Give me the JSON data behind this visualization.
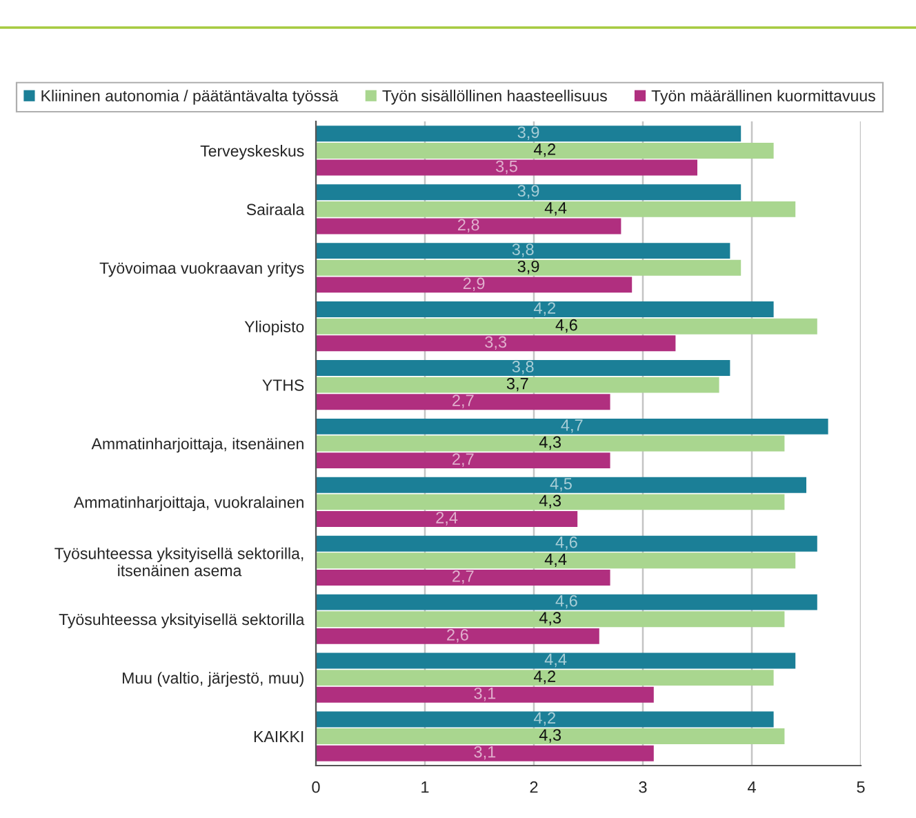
{
  "chart_data": {
    "type": "bar",
    "orientation": "horizontal",
    "categories": [
      "Terveyskeskus",
      "Sairaala",
      "Työvoimaa vuokraavan yritys",
      "Yliopisto",
      "YTHS",
      "Ammatinharjoittaja, itsenäinen",
      "Ammatinharjoittaja, vuokralainen",
      "Työsuhteessa yksityisellä sektorilla,\nitsenäinen asema",
      "Työsuhteessa yksityisellä sektorilla",
      "Muu (valtio, järjestö, muu)",
      "KAIKKI"
    ],
    "series": [
      {
        "name": "Kliininen autonomia / päätäntävalta työssä",
        "color": "#1b7f97",
        "values": [
          3.9,
          3.9,
          3.8,
          4.2,
          3.8,
          4.7,
          4.5,
          4.6,
          4.6,
          4.4,
          4.2
        ],
        "value_labels": [
          "3,9",
          "3,9",
          "3,8",
          "4,2",
          "3,8",
          "4,7",
          "4,5",
          "4,6",
          "4,6",
          "4,4",
          "4,2"
        ]
      },
      {
        "name": "Työn sisällöllinen haasteellisuus",
        "color": "#a9d68f",
        "values": [
          4.2,
          4.4,
          3.9,
          4.6,
          3.7,
          4.3,
          4.3,
          4.4,
          4.3,
          4.2,
          4.3
        ],
        "value_labels": [
          "4,2",
          "4,4",
          "3,9",
          "4,6",
          "3,7",
          "4,3",
          "4,3",
          "4,4",
          "4,3",
          "4,2",
          "4,3"
        ]
      },
      {
        "name": "Työn määrällinen kuormittavuus",
        "color": "#b02f7f",
        "values": [
          3.5,
          2.8,
          2.9,
          3.3,
          2.7,
          2.7,
          2.4,
          2.7,
          2.6,
          3.1,
          3.1
        ],
        "value_labels": [
          "3,5",
          "2,8",
          "2,9",
          "3,3",
          "2,7",
          "2,7",
          "2,4",
          "2,7",
          "2,6",
          "3,1",
          "3,1"
        ]
      }
    ],
    "xlim": [
      0,
      5
    ],
    "xticks": [
      0,
      1,
      2,
      3,
      4,
      5
    ],
    "grid": "x",
    "legend": "top"
  }
}
